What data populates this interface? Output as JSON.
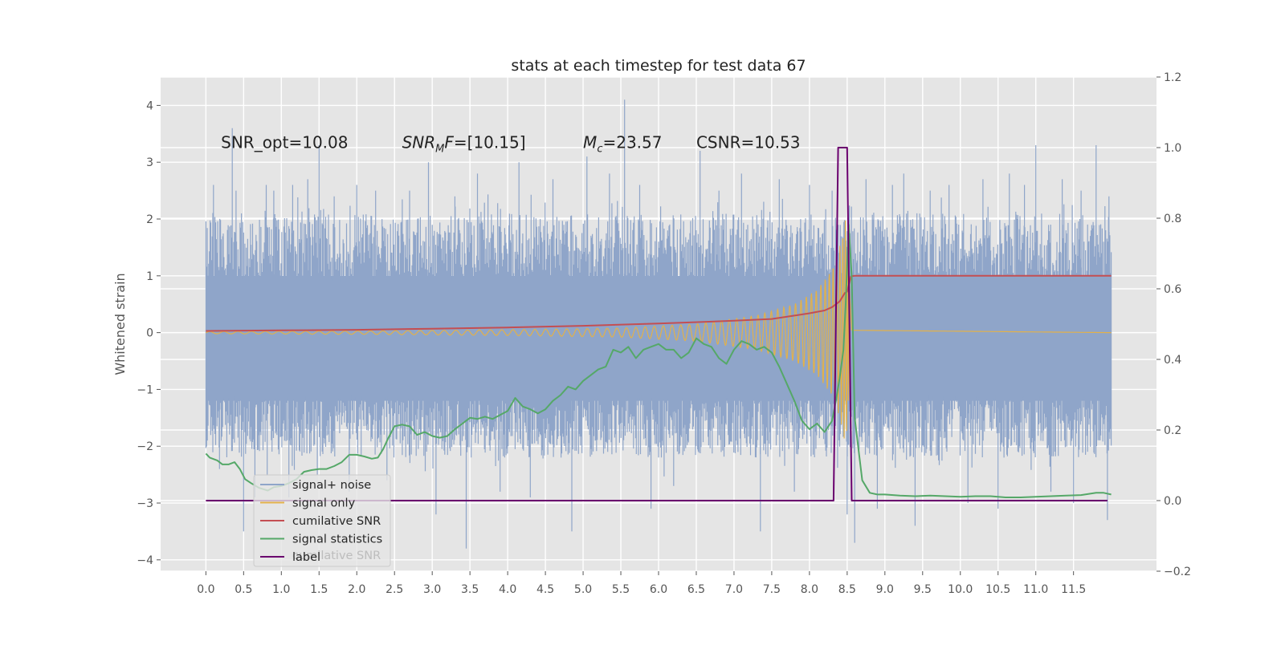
{
  "chart_data": {
    "type": "line",
    "title": "stats at each timestep for test data 67",
    "xlabel": "",
    "ylabel": "Whitened strain",
    "ylabel_right": "",
    "xlim": [
      -0.6,
      12.6
    ],
    "ylim": [
      -4.2,
      4.5
    ],
    "ylim_right": [
      -0.2,
      1.2
    ],
    "x_ticks": [
      "0.0",
      "0.5",
      "1.0",
      "1.5",
      "2.0",
      "2.5",
      "3.0",
      "3.5",
      "4.0",
      "4.5",
      "5.0",
      "5.5",
      "6.0",
      "6.5",
      "7.0",
      "7.5",
      "8.0",
      "8.5",
      "9.0",
      "9.5",
      "10.0",
      "10.5",
      "11.0",
      "11.5"
    ],
    "y_ticks": [
      "4",
      "3",
      "2",
      "1",
      "0",
      "−1",
      "−2",
      "−3",
      "−4"
    ],
    "y_ticks_right": [
      "1.2",
      "1.0",
      "0.8",
      "0.6",
      "0.4",
      "0.2",
      "0.0",
      "−0.2"
    ],
    "grid": true,
    "legend_position": "lower-left",
    "annotations": [
      {
        "id": "snr-opt",
        "text": "SNR_opt=10.08",
        "x": 0.2,
        "y": 3.35
      },
      {
        "id": "snr-mf",
        "text": "SNR",
        "sub": "M",
        "tail": "F=[10.15]",
        "x": 2.6,
        "y": 3.35
      },
      {
        "id": "mc",
        "text": "M",
        "sub": "c",
        "tail": "=23.57",
        "x": 5.0,
        "y": 3.35
      },
      {
        "id": "csnr",
        "text": "CSNR=10.53",
        "x": 6.5,
        "y": 3.35
      }
    ],
    "series": [
      {
        "name": "signal+ noise",
        "axis": "left",
        "color": "#8fa5c9",
        "x_range": [
          0.0,
          12.0
        ],
        "band_max": 2.1,
        "band_min": -2.2,
        "spikes": [
          [
            0.02,
            1.45
          ],
          [
            0.02,
            -1.9
          ],
          [
            0.1,
            2.6
          ],
          [
            0.18,
            -2.4
          ],
          [
            0.35,
            3.6
          ],
          [
            0.4,
            2.5
          ],
          [
            0.5,
            -3.5
          ],
          [
            0.65,
            -2.9
          ],
          [
            0.8,
            2.6
          ],
          [
            0.9,
            2.5
          ],
          [
            1.1,
            -2.9
          ],
          [
            1.15,
            2.6
          ],
          [
            1.35,
            2.7
          ],
          [
            1.5,
            3.3
          ],
          [
            1.7,
            2.4
          ],
          [
            1.9,
            -2.8
          ],
          [
            2.0,
            2.6
          ],
          [
            2.25,
            2.5
          ],
          [
            2.4,
            -2.6
          ],
          [
            2.7,
            2.5
          ],
          [
            2.95,
            3.0
          ],
          [
            3.05,
            -3.2
          ],
          [
            3.3,
            2.4
          ],
          [
            3.45,
            -3.8
          ],
          [
            3.6,
            2.8
          ],
          [
            3.9,
            -2.8
          ],
          [
            4.15,
            3.0
          ],
          [
            4.3,
            -2.9
          ],
          [
            4.6,
            2.7
          ],
          [
            4.85,
            -3.5
          ],
          [
            5.05,
            3.1
          ],
          [
            5.35,
            2.8
          ],
          [
            5.55,
            4.1
          ],
          [
            5.75,
            2.6
          ],
          [
            5.9,
            -3.1
          ],
          [
            6.0,
            1.6
          ],
          [
            6.2,
            -2.7
          ],
          [
            6.55,
            3.2
          ],
          [
            6.8,
            2.5
          ],
          [
            7.1,
            2.8
          ],
          [
            7.35,
            -3.5
          ],
          [
            7.6,
            2.7
          ],
          [
            7.8,
            -2.8
          ],
          [
            8.0,
            2.6
          ],
          [
            8.3,
            2.5
          ],
          [
            8.5,
            -3.2
          ],
          [
            8.6,
            -3.7
          ],
          [
            8.75,
            2.7
          ],
          [
            8.9,
            -3.1
          ],
          [
            9.1,
            2.6
          ],
          [
            9.25,
            2.8
          ],
          [
            9.4,
            -3.4
          ],
          [
            9.6,
            2.5
          ],
          [
            9.85,
            2.6
          ],
          [
            10.1,
            -3.0
          ],
          [
            10.3,
            2.7
          ],
          [
            10.5,
            -3.1
          ],
          [
            10.65,
            2.8
          ],
          [
            10.85,
            2.6
          ],
          [
            11.0,
            3.3
          ],
          [
            11.2,
            -2.8
          ],
          [
            11.35,
            2.7
          ],
          [
            11.5,
            -3.0
          ],
          [
            11.6,
            2.5
          ],
          [
            11.8,
            3.3
          ],
          [
            11.95,
            -3.3
          ],
          [
            11.97,
            2.4
          ]
        ]
      },
      {
        "name": "signal only",
        "axis": "left",
        "color": "#e2b14b",
        "x_range": [
          0.0,
          12.0
        ],
        "envelope": [
          [
            0.0,
            0.02
          ],
          [
            2.0,
            0.03
          ],
          [
            4.0,
            0.05
          ],
          [
            5.5,
            0.08
          ],
          [
            6.5,
            0.15
          ],
          [
            7.3,
            0.3
          ],
          [
            7.8,
            0.5
          ],
          [
            8.1,
            0.75
          ],
          [
            8.3,
            1.1
          ],
          [
            8.42,
            1.6
          ],
          [
            8.48,
            2.0
          ],
          [
            8.52,
            1.2
          ],
          [
            8.56,
            0.05
          ],
          [
            12.0,
            0.0
          ]
        ]
      },
      {
        "name": "cumilative SNR",
        "axis": "left",
        "color": "#c44e52",
        "points": [
          [
            0.0,
            0.03
          ],
          [
            1.0,
            0.04
          ],
          [
            2.0,
            0.05
          ],
          [
            3.0,
            0.07
          ],
          [
            4.0,
            0.09
          ],
          [
            5.0,
            0.12
          ],
          [
            6.0,
            0.16
          ],
          [
            7.0,
            0.21
          ],
          [
            7.5,
            0.24
          ],
          [
            7.8,
            0.3
          ],
          [
            8.0,
            0.34
          ],
          [
            8.2,
            0.39
          ],
          [
            8.3,
            0.45
          ],
          [
            8.4,
            0.55
          ],
          [
            8.47,
            0.7
          ],
          [
            8.5,
            0.72
          ],
          [
            8.55,
            0.99
          ],
          [
            8.6,
            1.0
          ],
          [
            12.0,
            1.0
          ]
        ]
      },
      {
        "name": "signal statistics",
        "axis": "left",
        "color": "#55a868",
        "points": [
          [
            0.0,
            -2.13
          ],
          [
            0.05,
            -2.2
          ],
          [
            0.15,
            -2.25
          ],
          [
            0.22,
            -2.32
          ],
          [
            0.3,
            -2.32
          ],
          [
            0.38,
            -2.28
          ],
          [
            0.45,
            -2.4
          ],
          [
            0.52,
            -2.58
          ],
          [
            0.6,
            -2.65
          ],
          [
            0.7,
            -2.73
          ],
          [
            0.82,
            -2.78
          ],
          [
            0.9,
            -2.72
          ],
          [
            1.0,
            -2.7
          ],
          [
            1.1,
            -2.65
          ],
          [
            1.2,
            -2.58
          ],
          [
            1.3,
            -2.45
          ],
          [
            1.4,
            -2.42
          ],
          [
            1.5,
            -2.4
          ],
          [
            1.6,
            -2.4
          ],
          [
            1.7,
            -2.35
          ],
          [
            1.8,
            -2.28
          ],
          [
            1.9,
            -2.15
          ],
          [
            2.0,
            -2.15
          ],
          [
            2.1,
            -2.18
          ],
          [
            2.2,
            -2.22
          ],
          [
            2.28,
            -2.2
          ],
          [
            2.35,
            -2.05
          ],
          [
            2.42,
            -1.85
          ],
          [
            2.5,
            -1.65
          ],
          [
            2.6,
            -1.62
          ],
          [
            2.7,
            -1.65
          ],
          [
            2.8,
            -1.8
          ],
          [
            2.9,
            -1.75
          ],
          [
            3.0,
            -1.82
          ],
          [
            3.1,
            -1.85
          ],
          [
            3.2,
            -1.82
          ],
          [
            3.3,
            -1.7
          ],
          [
            3.4,
            -1.6
          ],
          [
            3.5,
            -1.5
          ],
          [
            3.6,
            -1.52
          ],
          [
            3.7,
            -1.48
          ],
          [
            3.8,
            -1.52
          ],
          [
            3.9,
            -1.45
          ],
          [
            4.0,
            -1.38
          ],
          [
            4.1,
            -1.15
          ],
          [
            4.2,
            -1.3
          ],
          [
            4.3,
            -1.35
          ],
          [
            4.4,
            -1.42
          ],
          [
            4.5,
            -1.35
          ],
          [
            4.6,
            -1.2
          ],
          [
            4.7,
            -1.1
          ],
          [
            4.8,
            -0.95
          ],
          [
            4.9,
            -1.0
          ],
          [
            5.0,
            -0.85
          ],
          [
            5.1,
            -0.75
          ],
          [
            5.2,
            -0.65
          ],
          [
            5.3,
            -0.6
          ],
          [
            5.4,
            -0.3
          ],
          [
            5.5,
            -0.35
          ],
          [
            5.6,
            -0.25
          ],
          [
            5.7,
            -0.45
          ],
          [
            5.8,
            -0.3
          ],
          [
            5.9,
            -0.25
          ],
          [
            6.0,
            -0.2
          ],
          [
            6.1,
            -0.3
          ],
          [
            6.2,
            -0.3
          ],
          [
            6.3,
            -0.45
          ],
          [
            6.4,
            -0.35
          ],
          [
            6.5,
            -0.1
          ],
          [
            6.6,
            -0.2
          ],
          [
            6.7,
            -0.25
          ],
          [
            6.8,
            -0.45
          ],
          [
            6.9,
            -0.55
          ],
          [
            7.0,
            -0.3
          ],
          [
            7.1,
            -0.15
          ],
          [
            7.2,
            -0.2
          ],
          [
            7.3,
            -0.3
          ],
          [
            7.4,
            -0.25
          ],
          [
            7.5,
            -0.35
          ],
          [
            7.6,
            -0.6
          ],
          [
            7.7,
            -0.9
          ],
          [
            7.8,
            -1.2
          ],
          [
            7.9,
            -1.55
          ],
          [
            8.0,
            -1.7
          ],
          [
            8.1,
            -1.6
          ],
          [
            8.2,
            -1.75
          ],
          [
            8.3,
            -1.55
          ],
          [
            8.35,
            -1.2
          ],
          [
            8.4,
            -0.8
          ],
          [
            8.45,
            -0.3
          ],
          [
            8.48,
            0.5
          ],
          [
            8.5,
            1.2
          ],
          [
            8.52,
            1.9
          ],
          [
            8.56,
            1.0
          ],
          [
            8.6,
            -1.5
          ],
          [
            8.7,
            -2.6
          ],
          [
            8.8,
            -2.82
          ],
          [
            8.9,
            -2.85
          ],
          [
            9.0,
            -2.85
          ],
          [
            9.2,
            -2.87
          ],
          [
            9.4,
            -2.88
          ],
          [
            9.6,
            -2.87
          ],
          [
            9.8,
            -2.88
          ],
          [
            10.0,
            -2.89
          ],
          [
            10.2,
            -2.88
          ],
          [
            10.4,
            -2.88
          ],
          [
            10.6,
            -2.9
          ],
          [
            10.8,
            -2.9
          ],
          [
            11.0,
            -2.89
          ],
          [
            11.2,
            -2.88
          ],
          [
            11.4,
            -2.87
          ],
          [
            11.6,
            -2.86
          ],
          [
            11.8,
            -2.82
          ],
          [
            11.9,
            -2.82
          ],
          [
            12.0,
            -2.85
          ]
        ]
      },
      {
        "name": "label",
        "axis": "right",
        "color": "#6a006e",
        "points": [
          [
            0.0,
            0.0
          ],
          [
            8.32,
            0.0
          ],
          [
            8.38,
            1.0
          ],
          [
            8.5,
            1.0
          ],
          [
            8.56,
            0.0
          ],
          [
            11.95,
            0.0
          ]
        ]
      }
    ],
    "legend_ghost_text": "cumilative SNR"
  }
}
